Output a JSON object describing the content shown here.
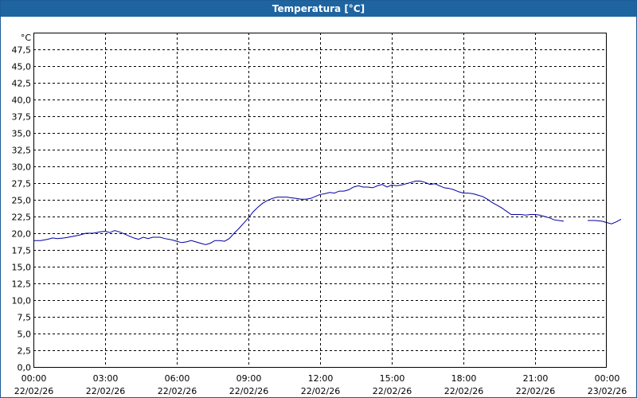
{
  "window": {
    "title": "Temperatura [°C]"
  },
  "chart_data": {
    "type": "line",
    "title": "Temperatura [°C]",
    "ylabel": "°C",
    "xlabel": "",
    "ylim": [
      0,
      50
    ],
    "yticks": [
      "0,0",
      "2,5",
      "5,0",
      "7,5",
      "10,0",
      "12,5",
      "15,0",
      "17,5",
      "20,0",
      "22,5",
      "25,0",
      "27,5",
      "30,0",
      "32,5",
      "35,0",
      "37,5",
      "40,0",
      "42,5",
      "45,0",
      "47,5"
    ],
    "xlim_hours": [
      0,
      24
    ],
    "xticks": [
      {
        "time": "00:00",
        "date": "22/02/26"
      },
      {
        "time": "03:00",
        "date": "22/02/26"
      },
      {
        "time": "06:00",
        "date": "22/02/26"
      },
      {
        "time": "09:00",
        "date": "22/02/26"
      },
      {
        "time": "12:00",
        "date": "22/02/26"
      },
      {
        "time": "15:00",
        "date": "22/02/26"
      },
      {
        "time": "18:00",
        "date": "22/02/26"
      },
      {
        "time": "21:00",
        "date": "22/02/26"
      },
      {
        "time": "00:00",
        "date": "23/02/26"
      }
    ],
    "grid": true,
    "colors": {
      "line": "#0000a0",
      "grid": "#000000"
    },
    "series": [
      {
        "segments": [
          [
            [
              0.0,
              18.9
            ],
            [
              0.3,
              18.9
            ],
            [
              0.6,
              19.1
            ],
            [
              0.8,
              19.3
            ],
            [
              1.0,
              19.2
            ],
            [
              1.3,
              19.3
            ],
            [
              1.6,
              19.5
            ],
            [
              1.9,
              19.7
            ],
            [
              2.2,
              20.0
            ],
            [
              2.5,
              20.0
            ],
            [
              2.8,
              20.2
            ],
            [
              3.0,
              20.3
            ],
            [
              3.2,
              20.1
            ],
            [
              3.4,
              20.4
            ],
            [
              3.6,
              20.2
            ],
            [
              3.8,
              19.9
            ],
            [
              4.0,
              19.6
            ],
            [
              4.2,
              19.3
            ],
            [
              4.4,
              19.1
            ],
            [
              4.6,
              19.4
            ],
            [
              4.8,
              19.2
            ],
            [
              5.0,
              19.4
            ],
            [
              5.3,
              19.4
            ],
            [
              5.5,
              19.2
            ],
            [
              5.8,
              19.0
            ],
            [
              6.0,
              18.8
            ],
            [
              6.2,
              18.6
            ],
            [
              6.4,
              18.7
            ],
            [
              6.6,
              18.9
            ],
            [
              6.8,
              18.7
            ],
            [
              7.0,
              18.5
            ],
            [
              7.2,
              18.3
            ],
            [
              7.4,
              18.5
            ],
            [
              7.6,
              18.9
            ],
            [
              7.8,
              18.9
            ],
            [
              8.0,
              18.8
            ],
            [
              8.2,
              19.2
            ],
            [
              8.4,
              20.0
            ],
            [
              8.6,
              20.7
            ],
            [
              8.8,
              21.5
            ],
            [
              9.0,
              22.3
            ],
            [
              9.2,
              23.2
            ],
            [
              9.4,
              23.9
            ],
            [
              9.6,
              24.5
            ],
            [
              9.8,
              24.9
            ],
            [
              10.0,
              25.2
            ],
            [
              10.2,
              25.4
            ],
            [
              10.4,
              25.4
            ],
            [
              10.6,
              25.4
            ],
            [
              10.8,
              25.3
            ],
            [
              11.0,
              25.2
            ],
            [
              11.2,
              25.1
            ],
            [
              11.4,
              25.1
            ],
            [
              11.6,
              25.2
            ],
            [
              11.8,
              25.5
            ],
            [
              12.0,
              25.8
            ],
            [
              12.2,
              25.9
            ],
            [
              12.4,
              26.1
            ],
            [
              12.6,
              26.0
            ],
            [
              12.8,
              26.3
            ],
            [
              13.0,
              26.3
            ],
            [
              13.2,
              26.5
            ],
            [
              13.4,
              26.9
            ],
            [
              13.6,
              27.1
            ],
            [
              13.8,
              26.9
            ],
            [
              14.0,
              26.9
            ],
            [
              14.2,
              26.8
            ],
            [
              14.4,
              27.1
            ],
            [
              14.6,
              27.3
            ],
            [
              14.8,
              26.9
            ],
            [
              15.0,
              27.2
            ],
            [
              15.2,
              27.1
            ],
            [
              15.4,
              27.2
            ],
            [
              15.6,
              27.4
            ],
            [
              15.8,
              27.6
            ],
            [
              16.0,
              27.8
            ],
            [
              16.2,
              27.8
            ],
            [
              16.4,
              27.6
            ],
            [
              16.6,
              27.3
            ],
            [
              16.8,
              27.4
            ],
            [
              17.0,
              27.1
            ],
            [
              17.2,
              26.8
            ],
            [
              17.4,
              26.7
            ],
            [
              17.6,
              26.5
            ],
            [
              17.8,
              26.2
            ],
            [
              18.0,
              26.0
            ],
            [
              18.2,
              26.0
            ],
            [
              18.4,
              25.9
            ],
            [
              18.6,
              25.7
            ],
            [
              18.8,
              25.5
            ],
            [
              19.0,
              25.1
            ],
            [
              19.2,
              24.6
            ],
            [
              19.4,
              24.2
            ],
            [
              19.6,
              23.8
            ],
            [
              19.8,
              23.3
            ],
            [
              20.0,
              22.8
            ],
            [
              20.2,
              22.8
            ],
            [
              20.4,
              22.8
            ],
            [
              20.6,
              22.7
            ],
            [
              20.8,
              22.8
            ],
            [
              21.0,
              22.8
            ],
            [
              21.2,
              22.7
            ],
            [
              21.4,
              22.5
            ],
            [
              21.6,
              22.3
            ],
            [
              21.8,
              22.0
            ],
            [
              22.0,
              21.9
            ],
            [
              22.2,
              21.8
            ]
          ],
          [
            [
              23.2,
              21.9
            ],
            [
              23.5,
              21.9
            ],
            [
              23.8,
              21.8
            ],
            [
              24.0,
              21.6
            ],
            [
              24.2,
              21.4
            ],
            [
              24.4,
              21.7
            ],
            [
              24.6,
              22.1
            ]
          ]
        ]
      }
    ]
  }
}
